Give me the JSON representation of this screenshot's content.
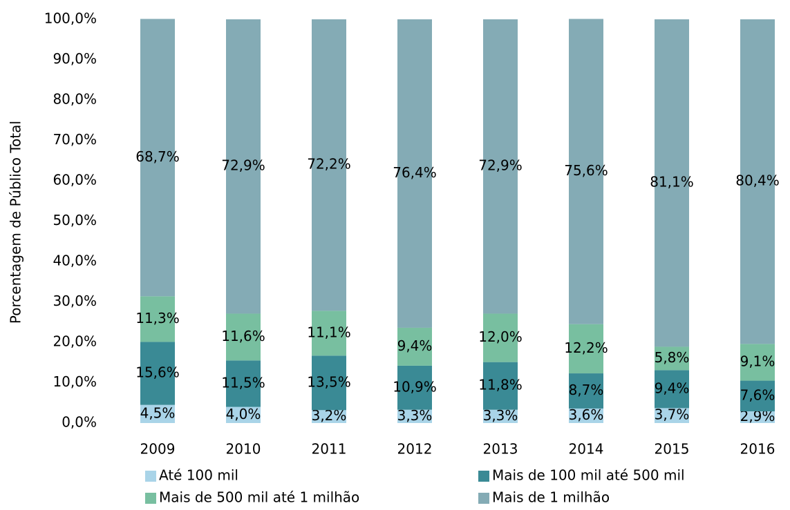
{
  "chart_data": {
    "type": "bar",
    "stacked": true,
    "y_label": "Porcentagem de  Público Total",
    "categories": [
      "2009",
      "2010",
      "2011",
      "2012",
      "2013",
      "2014",
      "2015",
      "2016"
    ],
    "series": [
      {
        "name": "Até 100 mil",
        "color": "#a9d4e8",
        "values": [
          4.5,
          4.0,
          3.2,
          3.3,
          3.3,
          3.6,
          3.7,
          2.9
        ],
        "value_labels": [
          "4,5%",
          "4,0%",
          "3,2%",
          "3,3%",
          "3,3%",
          "3,6%",
          "3,7%",
          "2,9%"
        ]
      },
      {
        "name": "Mais de 100 mil até 500 mil",
        "color": "#3a8a95",
        "values": [
          15.6,
          11.5,
          13.5,
          10.9,
          11.8,
          8.7,
          9.4,
          7.6
        ],
        "value_labels": [
          "15,6%",
          "11,5%",
          "13,5%",
          "10,9%",
          "11,8%",
          "8,7%",
          "9,4%",
          "7,6%"
        ]
      },
      {
        "name": "Mais de 500 mil até 1 milhão",
        "color": "#78bfa0",
        "values": [
          11.3,
          11.6,
          11.1,
          9.4,
          12.0,
          12.2,
          5.8,
          9.1
        ],
        "value_labels": [
          "11,3%",
          "11,6%",
          "11,1%",
          "9,4%",
          "12,0%",
          "12,2%",
          "5,8%",
          "9,1%"
        ]
      },
      {
        "name": "Mais de 1 milhão",
        "color": "#84abb5",
        "values": [
          68.7,
          72.9,
          72.2,
          76.4,
          72.9,
          75.6,
          81.1,
          80.4
        ],
        "value_labels": [
          "68,7%",
          "72,9%",
          "72,2%",
          "76,4%",
          "72,9%",
          "75,6%",
          "81,1%",
          "80,4%"
        ]
      }
    ],
    "ylim": [
      0,
      100
    ],
    "yticks": [
      {
        "value": 0,
        "label": "0,0%"
      },
      {
        "value": 10,
        "label": "10,0%"
      },
      {
        "value": 20,
        "label": "20,0%"
      },
      {
        "value": 30,
        "label": "30,0%"
      },
      {
        "value": 40,
        "label": "40,0%"
      },
      {
        "value": 50,
        "label": "50,0%"
      },
      {
        "value": 60,
        "label": "60,0%"
      },
      {
        "value": 70,
        "label": "70,0%"
      },
      {
        "value": 80,
        "label": "80,0%"
      },
      {
        "value": 90,
        "label": "90,0%"
      },
      {
        "value": 100,
        "label": "100,0%"
      }
    ],
    "legend": "bottom"
  }
}
